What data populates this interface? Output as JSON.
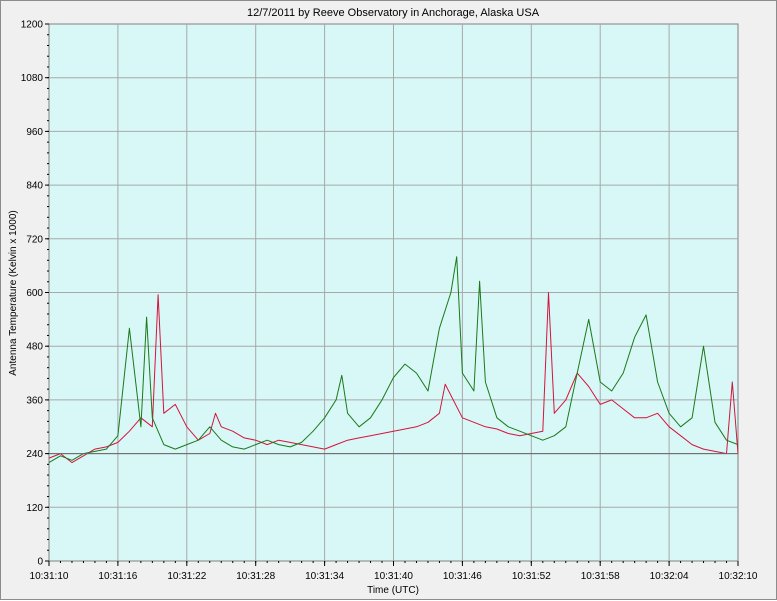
{
  "chart_data": {
    "type": "line",
    "title": "12/7/2011  by  Reeve Observatory  in  Anchorage, Alaska  USA",
    "xlabel": "Time (UTC)",
    "ylabel": "Antenna Temperature (Kelvin x 1000)",
    "ylim": [
      0,
      1200
    ],
    "yticks": [
      0,
      120,
      240,
      360,
      480,
      600,
      720,
      840,
      960,
      1080,
      1200
    ],
    "xlim_seconds": [
      0,
      60
    ],
    "xticks": [
      "10:31:10",
      "10:31:16",
      "10:31:22",
      "10:31:28",
      "10:31:34",
      "10:31:40",
      "10:31:46",
      "10:31:52",
      "10:31:58",
      "10:32:04",
      "10:32:10"
    ],
    "grid": true,
    "colors": {
      "plot_background": "#d8f7f7",
      "grid": "#a8a8a8",
      "red_series": "#d4143c",
      "green_series": "#1a7a1a",
      "baseline": "#666666"
    },
    "series": [
      {
        "color": "#d4143c",
        "points": [
          [
            0,
            230
          ],
          [
            1,
            240
          ],
          [
            2,
            220
          ],
          [
            3,
            235
          ],
          [
            4,
            250
          ],
          [
            5,
            255
          ],
          [
            6,
            265
          ],
          [
            7,
            290
          ],
          [
            8,
            320
          ],
          [
            9,
            300
          ],
          [
            9.5,
            595
          ],
          [
            10,
            330
          ],
          [
            11,
            350
          ],
          [
            12,
            300
          ],
          [
            13,
            270
          ],
          [
            14,
            285
          ],
          [
            14.5,
            330
          ],
          [
            15,
            300
          ],
          [
            16,
            290
          ],
          [
            17,
            275
          ],
          [
            18,
            270
          ],
          [
            19,
            260
          ],
          [
            20,
            270
          ],
          [
            21,
            265
          ],
          [
            22,
            260
          ],
          [
            23,
            255
          ],
          [
            24,
            250
          ],
          [
            25,
            260
          ],
          [
            26,
            270
          ],
          [
            27,
            275
          ],
          [
            28,
            280
          ],
          [
            29,
            285
          ],
          [
            30,
            290
          ],
          [
            31,
            295
          ],
          [
            32,
            300
          ],
          [
            33,
            310
          ],
          [
            34,
            330
          ],
          [
            34.5,
            395
          ],
          [
            35,
            370
          ],
          [
            36,
            320
          ],
          [
            37,
            310
          ],
          [
            38,
            300
          ],
          [
            39,
            295
          ],
          [
            40,
            285
          ],
          [
            41,
            280
          ],
          [
            42,
            285
          ],
          [
            43,
            290
          ],
          [
            43.5,
            600
          ],
          [
            44,
            330
          ],
          [
            45,
            360
          ],
          [
            46,
            420
          ],
          [
            47,
            390
          ],
          [
            48,
            350
          ],
          [
            49,
            360
          ],
          [
            50,
            340
          ],
          [
            51,
            320
          ],
          [
            52,
            320
          ],
          [
            53,
            330
          ],
          [
            54,
            300
          ],
          [
            55,
            280
          ],
          [
            56,
            260
          ],
          [
            57,
            250
          ],
          [
            58,
            245
          ],
          [
            59,
            240
          ],
          [
            59.5,
            400
          ],
          [
            60,
            240
          ]
        ]
      },
      {
        "color": "#1a7a1a",
        "points": [
          [
            0,
            220
          ],
          [
            1,
            235
          ],
          [
            2,
            225
          ],
          [
            3,
            240
          ],
          [
            4,
            245
          ],
          [
            5,
            250
          ],
          [
            6,
            280
          ],
          [
            7,
            520
          ],
          [
            8,
            300
          ],
          [
            8.5,
            545
          ],
          [
            9,
            320
          ],
          [
            10,
            260
          ],
          [
            11,
            250
          ],
          [
            12,
            260
          ],
          [
            13,
            270
          ],
          [
            14,
            300
          ],
          [
            15,
            270
          ],
          [
            16,
            255
          ],
          [
            17,
            250
          ],
          [
            18,
            260
          ],
          [
            19,
            270
          ],
          [
            20,
            260
          ],
          [
            21,
            255
          ],
          [
            22,
            265
          ],
          [
            23,
            290
          ],
          [
            24,
            320
          ],
          [
            25,
            360
          ],
          [
            25.5,
            415
          ],
          [
            26,
            330
          ],
          [
            27,
            300
          ],
          [
            28,
            320
          ],
          [
            29,
            360
          ],
          [
            30,
            410
          ],
          [
            31,
            440
          ],
          [
            32,
            420
          ],
          [
            33,
            380
          ],
          [
            34,
            520
          ],
          [
            35,
            600
          ],
          [
            35.5,
            680
          ],
          [
            36,
            420
          ],
          [
            37,
            380
          ],
          [
            37.5,
            625
          ],
          [
            38,
            400
          ],
          [
            39,
            320
          ],
          [
            40,
            300
          ],
          [
            41,
            290
          ],
          [
            42,
            280
          ],
          [
            43,
            270
          ],
          [
            44,
            280
          ],
          [
            45,
            300
          ],
          [
            46,
            420
          ],
          [
            47,
            540
          ],
          [
            48,
            400
          ],
          [
            49,
            380
          ],
          [
            50,
            420
          ],
          [
            51,
            500
          ],
          [
            52,
            550
          ],
          [
            53,
            400
          ],
          [
            54,
            330
          ],
          [
            55,
            300
          ],
          [
            56,
            320
          ],
          [
            57,
            480
          ],
          [
            58,
            310
          ],
          [
            59,
            270
          ],
          [
            60,
            260
          ]
        ]
      }
    ]
  }
}
